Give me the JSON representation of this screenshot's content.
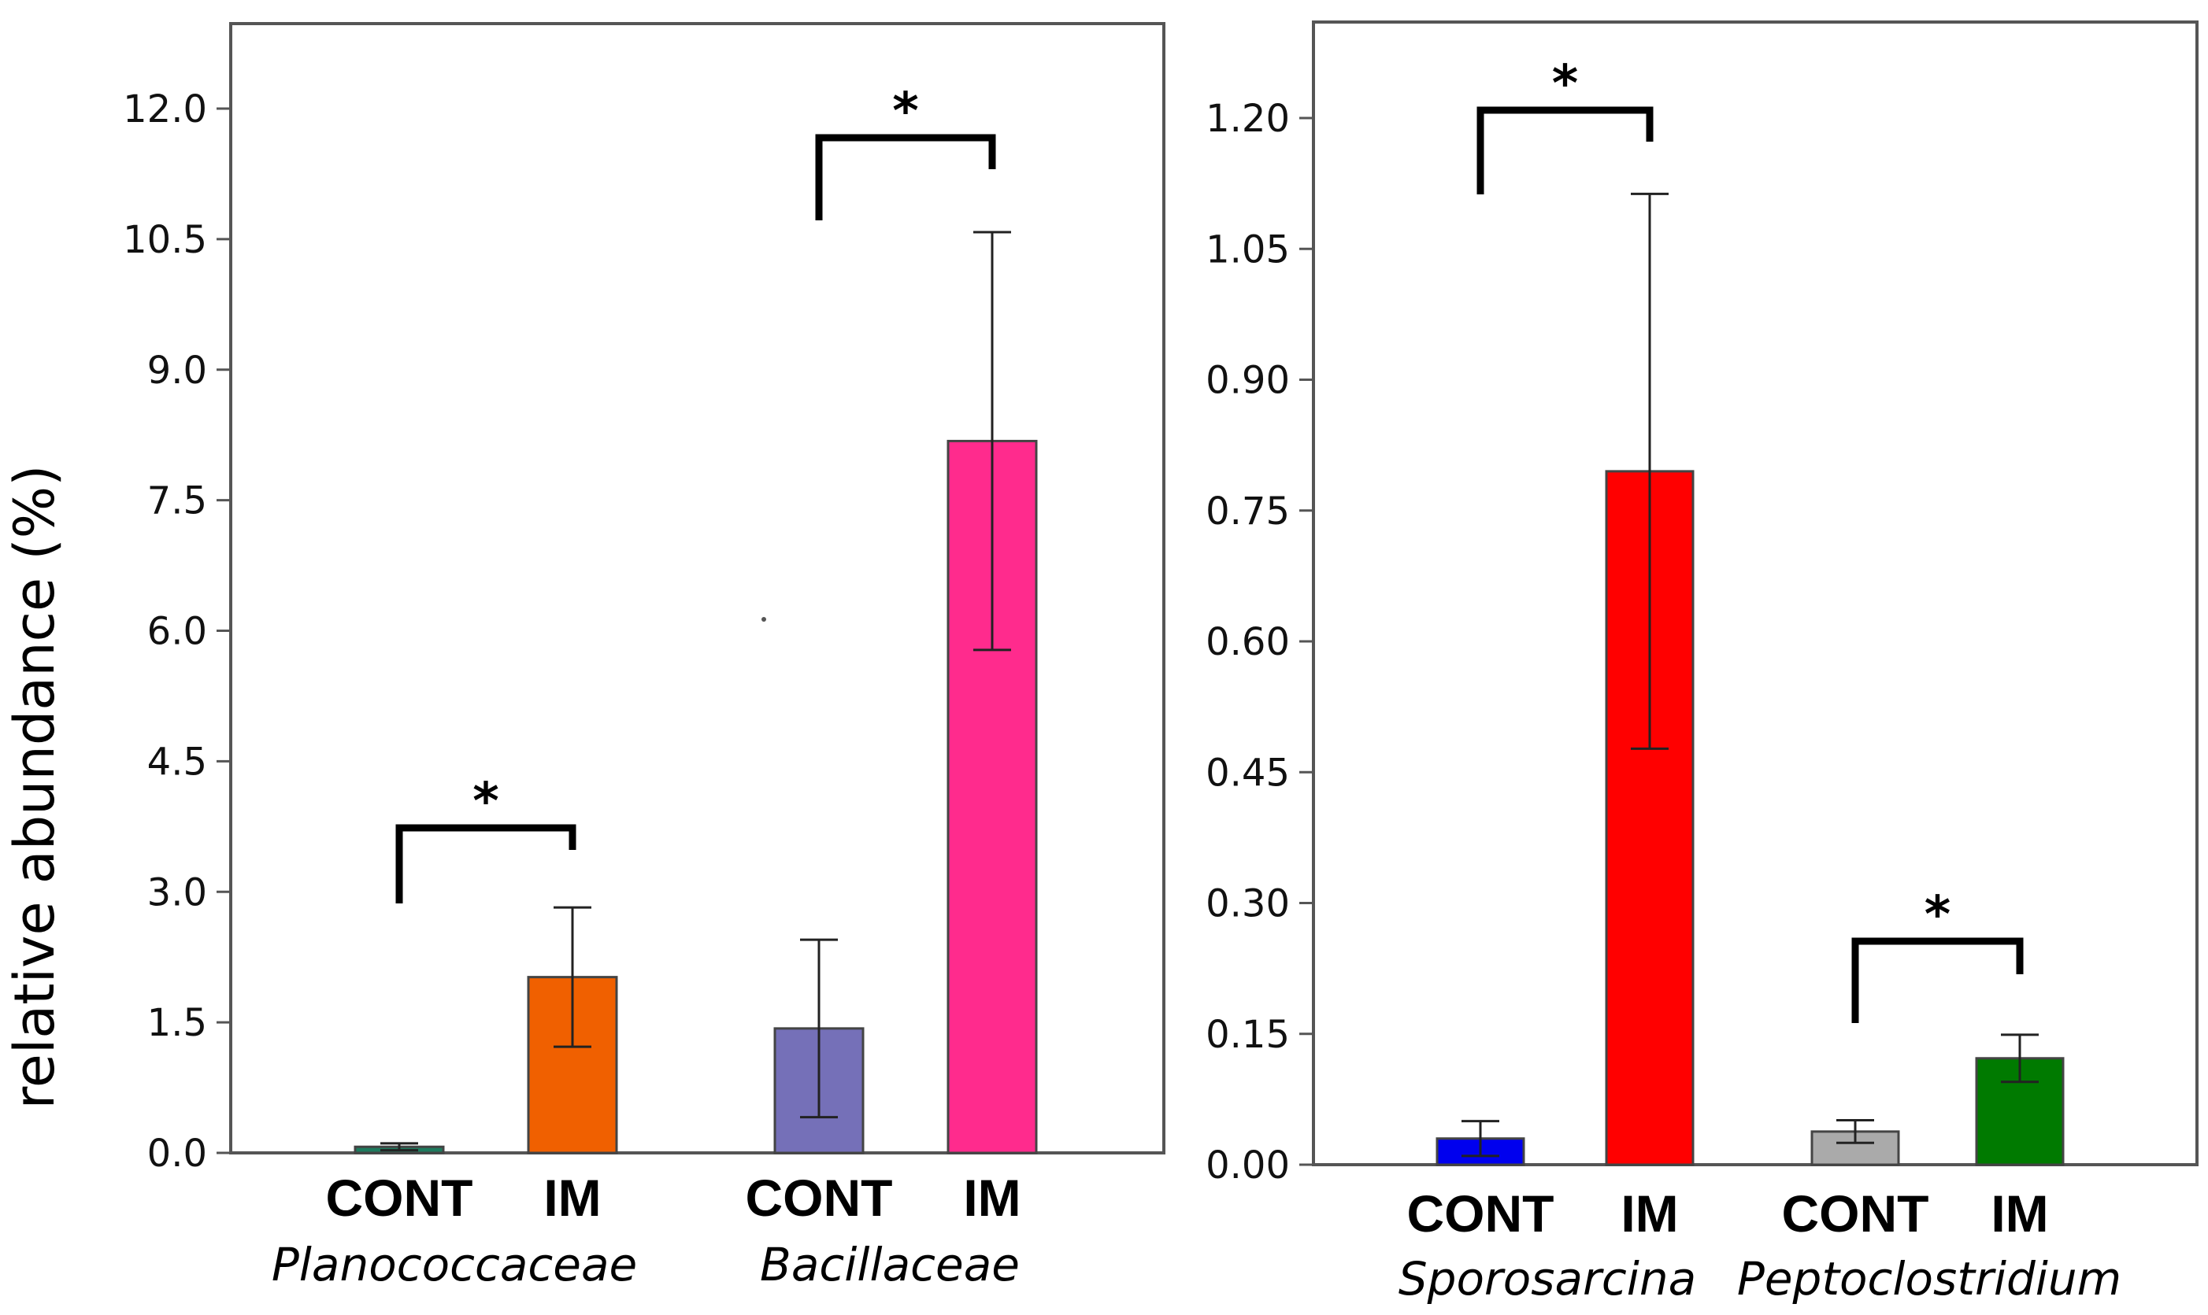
{
  "chart_data": [
    {
      "type": "bar",
      "ylabel": "relative abundance (%)",
      "ylim": [
        0,
        13.2
      ],
      "yticks": [
        "0.0",
        "1.5",
        "3.0",
        "4.5",
        "6.0",
        "7.5",
        "9.0",
        "10.5",
        "12.0"
      ],
      "categories": [
        "CONT",
        "IM",
        "CONT",
        "IM"
      ],
      "groups": [
        "Planococcaceae",
        "Bacillaceae"
      ],
      "values": [
        0.07,
        2.02,
        1.43,
        8.18
      ],
      "errors": [
        0.04,
        0.8,
        1.02,
        2.4
      ],
      "colors": [
        "#1e7b5e",
        "#f06000",
        "#7570b8",
        "#ff2b8d"
      ],
      "significance": [
        {
          "between": [
            0,
            1
          ],
          "label": "*"
        },
        {
          "between": [
            2,
            3
          ],
          "label": "*"
        }
      ]
    },
    {
      "type": "bar",
      "ylabel": "",
      "ylim": [
        0,
        1.3
      ],
      "yticks": [
        "0.00",
        "0.15",
        "0.30",
        "0.45",
        "0.60",
        "0.75",
        "0.90",
        "1.05",
        "1.20"
      ],
      "categories": [
        "CONT",
        "IM",
        "CONT",
        "IM"
      ],
      "groups": [
        "Sporosarcina",
        "Peptoclostridium"
      ],
      "values": [
        0.03,
        0.795,
        0.038,
        0.122
      ],
      "errors": [
        0.02,
        0.318,
        0.013,
        0.027
      ],
      "colors": [
        "#0000ee",
        "#ff0000",
        "#aaaaaa",
        "#007a00"
      ],
      "significance": [
        {
          "between": [
            0,
            1
          ],
          "label": "*"
        },
        {
          "between": [
            2,
            3
          ],
          "label": "*"
        }
      ]
    }
  ]
}
